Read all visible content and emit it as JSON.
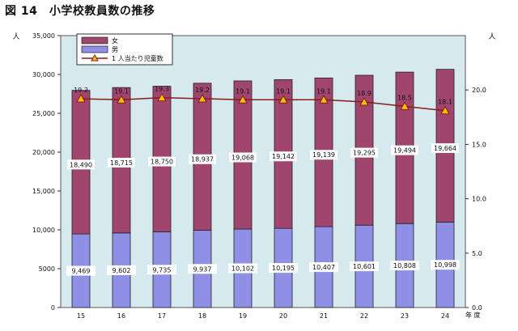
{
  "figure_title": "図 14　小学校教員数の推移",
  "chart_data": {
    "type": "bar",
    "stacked": true,
    "categories": [
      "15",
      "16",
      "17",
      "18",
      "19",
      "20",
      "21",
      "22",
      "23",
      "24"
    ],
    "series": [
      {
        "name": "男",
        "color": "#8F8FE6",
        "values": [
          9469,
          9602,
          9735,
          9937,
          10102,
          10195,
          10407,
          10601,
          10808,
          10998
        ],
        "labels": [
          "9,469",
          "9,602",
          "9,735",
          "9,937",
          "10,102",
          "10,195",
          "10,407",
          "10,601",
          "10,808",
          "10,998"
        ]
      },
      {
        "name": "女",
        "color": "#A0456E",
        "values": [
          18490,
          18715,
          18750,
          18937,
          19068,
          19142,
          19139,
          19295,
          19494,
          19664
        ],
        "labels": [
          "18,490",
          "18,715",
          "18,750",
          "18,937",
          "19,068",
          "19,142",
          "19,139",
          "19,295",
          "19,494",
          "19,664"
        ]
      }
    ],
    "line_series": {
      "name": "1 人当たり児童数",
      "color": "#8B1A1A",
      "marker_color": "#F2C200",
      "axis": "right",
      "values": [
        19.2,
        19.1,
        19.3,
        19.2,
        19.1,
        19.1,
        19.1,
        18.9,
        18.5,
        18.1
      ],
      "labels": [
        "19.2",
        "19.1",
        "19.3",
        "19.2",
        "19.1",
        "19.1",
        "19.1",
        "18.9",
        "18.5",
        "18.1"
      ]
    },
    "y_left": {
      "unit": "人",
      "min": 0,
      "max": 35000,
      "ticks": [
        0,
        5000,
        10000,
        15000,
        20000,
        25000,
        30000,
        35000
      ],
      "tick_labels": [
        "0",
        "5000",
        "10,000",
        "15,000",
        "20,000",
        "25,000",
        "30,000",
        "35,000"
      ]
    },
    "y_right": {
      "unit": "人",
      "min": 0,
      "max": 25,
      "ticks": [
        0,
        5,
        10,
        15,
        20
      ],
      "tick_labels": [
        "0.0",
        "5.0",
        "10.0",
        "15.0",
        "20.0"
      ]
    },
    "xlabel": "年 度",
    "legend_position": "top-left",
    "plot_background": "#D6E9EE",
    "grid": false
  }
}
